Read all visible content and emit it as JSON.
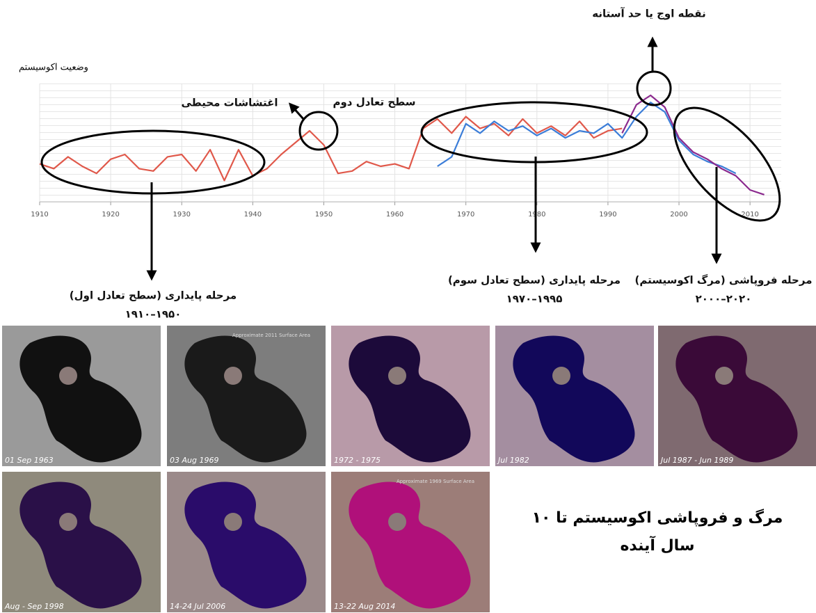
{
  "chart_data": {
    "type": "line",
    "title": "وضعیت اکوسیستم",
    "x": [
      1910,
      1912,
      1914,
      1916,
      1918,
      1920,
      1922,
      1924,
      1926,
      1928,
      1930,
      1932,
      1934,
      1936,
      1938,
      1940,
      1942,
      1944,
      1946,
      1948,
      1950,
      1952,
      1954,
      1956,
      1958,
      1960,
      1962,
      1964,
      1966,
      1968,
      1970,
      1972,
      1974,
      1976,
      1978,
      1980,
      1982,
      1984,
      1986,
      1988,
      1990,
      1992,
      1994,
      1996,
      1998,
      2000,
      2002,
      2004,
      2006,
      2008,
      2010,
      2012
    ],
    "series": [
      {
        "color": "#e0584a",
        "values": [
          32,
          28,
          38,
          30,
          24,
          36,
          40,
          28,
          26,
          38,
          40,
          26,
          44,
          18,
          44,
          22,
          28,
          40,
          50,
          60,
          48,
          24,
          26,
          34,
          30,
          32,
          28,
          62,
          70,
          58,
          72,
          62,
          66,
          56,
          70,
          58,
          64,
          56,
          68,
          54,
          60,
          62,
          null,
          null,
          null,
          null,
          null,
          null,
          null,
          null,
          null,
          null
        ]
      },
      {
        "color": "#3b7dd8",
        "values": [
          null,
          null,
          null,
          null,
          null,
          null,
          null,
          null,
          null,
          null,
          null,
          null,
          null,
          null,
          null,
          null,
          null,
          null,
          null,
          null,
          null,
          null,
          null,
          null,
          null,
          null,
          null,
          null,
          30,
          38,
          66,
          58,
          68,
          60,
          64,
          56,
          62,
          54,
          60,
          58,
          66,
          54,
          72,
          84,
          76,
          52,
          40,
          34,
          30,
          24,
          null,
          null
        ]
      },
      {
        "color": "#8b2a8e",
        "values": [
          null,
          null,
          null,
          null,
          null,
          null,
          null,
          null,
          null,
          null,
          null,
          null,
          null,
          null,
          null,
          null,
          null,
          null,
          null,
          null,
          null,
          null,
          null,
          null,
          null,
          null,
          null,
          null,
          null,
          null,
          null,
          null,
          null,
          null,
          null,
          null,
          null,
          null,
          null,
          null,
          null,
          58,
          82,
          90,
          80,
          54,
          42,
          36,
          28,
          22,
          10,
          6
        ]
      }
    ],
    "xlim": [
      1910,
      2014
    ],
    "xticks": [
      1910,
      1920,
      1930,
      1940,
      1950,
      1960,
      1970,
      1980,
      1990,
      2000,
      2010
    ],
    "ylim": [
      0,
      100
    ],
    "grid": true,
    "annotations": [
      "نقطه اوج یا حد آستانه",
      "اغتشاشات محیطی",
      "سطح تعادل دوم",
      "مرحله پایداری (سطح تعادل اول)",
      "۱۹۱۰–۱۹۵۰",
      "مرحله پایداری (سطح تعادل سوم)",
      "۱۹۷۰–۱۹۹۵",
      "مرحله فروپاشی (مرگ اکوسیستم)",
      "۲۰۰۰–۲۰۲۰"
    ]
  },
  "images": [
    {
      "caption": "01 Sep 1963"
    },
    {
      "caption": "03 Aug 1969",
      "note": "Approximate 2011 Surface Area"
    },
    {
      "caption": "1972 - 1975"
    },
    {
      "caption": "Jul 1982"
    },
    {
      "caption": "Jul 1987 - Jun 1989"
    },
    {
      "caption": "Aug - Sep 1998"
    },
    {
      "caption": "14-24 Jul 2006"
    },
    {
      "caption": "13-22 Aug 2014",
      "note": "Approximate 1969 Surface Area"
    }
  ],
  "conclusion": [
    "مرگ و فروپاشی اکوسیستم تا ۱۰",
    "سال آینده"
  ]
}
